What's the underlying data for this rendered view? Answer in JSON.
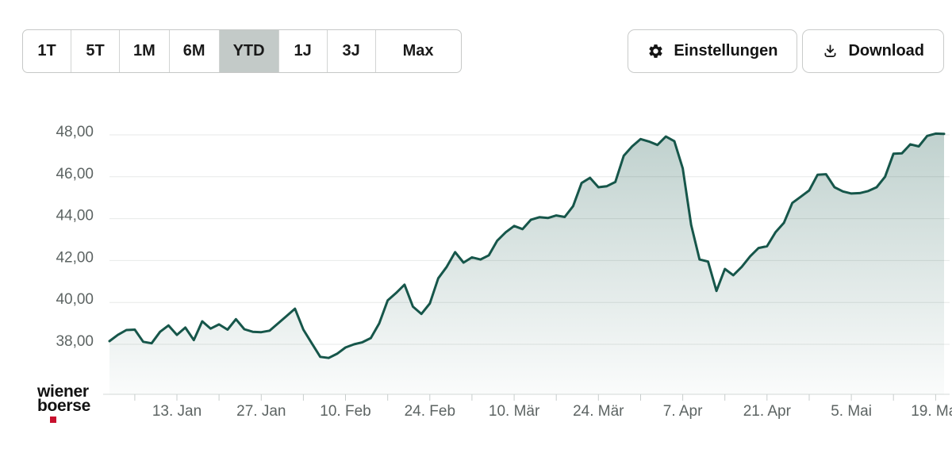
{
  "toolbar": {
    "ranges": [
      {
        "label": "1T",
        "selected": false
      },
      {
        "label": "5T",
        "selected": false
      },
      {
        "label": "1M",
        "selected": false
      },
      {
        "label": "6M",
        "selected": false
      },
      {
        "label": "YTD",
        "selected": true
      },
      {
        "label": "1J",
        "selected": false
      },
      {
        "label": "3J",
        "selected": false
      },
      {
        "label": "Max",
        "selected": false
      }
    ],
    "selected_range": "YTD",
    "settings_label": "Einstellungen",
    "download_label": "Download"
  },
  "logo": {
    "line1": "wiener",
    "line2": "boerse"
  },
  "colors": {
    "line": "#16564a",
    "area_top": "rgba(22,86,74,0.27)",
    "area_bottom": "rgba(22,86,74,0.02)",
    "selected_range_bg": "#c3cac8",
    "grid": "#e7e9e8",
    "axis_text": "#5d6463",
    "axis_line": "#d3d8d7",
    "tick": "#c7cdcc",
    "logo_red": "#c8102e"
  },
  "chart_data": {
    "type": "area",
    "title": "",
    "xlabel": "",
    "ylabel": "",
    "legend": false,
    "grid": "horizontal",
    "ylim": [
      35.4,
      48.8
    ],
    "y_ticks": [
      {
        "label": "48,00",
        "value": 48
      },
      {
        "label": "46,00",
        "value": 46
      },
      {
        "label": "44,00",
        "value": 44
      },
      {
        "label": "42,00",
        "value": 42
      },
      {
        "label": "40,00",
        "value": 40
      },
      {
        "label": "38,00",
        "value": 38
      }
    ],
    "x_ticks": [
      {
        "label": "13. Jan",
        "index": 8
      },
      {
        "label": "27. Jan",
        "index": 18
      },
      {
        "label": "10. Feb",
        "index": 28
      },
      {
        "label": "24. Feb",
        "index": 38
      },
      {
        "label": "10. Mär",
        "index": 48
      },
      {
        "label": "24. Mär",
        "index": 58
      },
      {
        "label": "7. Apr",
        "index": 68
      },
      {
        "label": "21. Apr",
        "index": 78
      },
      {
        "label": "5. Mai",
        "index": 88
      },
      {
        "label": "19. Mai",
        "index": 98
      }
    ],
    "minor_tick_indices": [
      3,
      8,
      13,
      18,
      23,
      28,
      33,
      38,
      43,
      48,
      53,
      58,
      63,
      68,
      73,
      78,
      83,
      88,
      93,
      98
    ],
    "values": [
      38.15,
      38.45,
      38.68,
      38.7,
      38.12,
      38.05,
      38.6,
      38.9,
      38.45,
      38.8,
      38.2,
      39.1,
      38.75,
      38.95,
      38.7,
      39.2,
      38.72,
      38.6,
      38.58,
      38.65,
      39.0,
      39.35,
      39.7,
      38.7,
      38.05,
      37.4,
      37.35,
      37.55,
      37.85,
      38.0,
      38.1,
      38.3,
      39.0,
      40.1,
      40.45,
      40.85,
      39.8,
      39.45,
      39.95,
      41.15,
      41.7,
      42.4,
      41.9,
      42.15,
      42.05,
      42.25,
      42.95,
      43.35,
      43.65,
      43.5,
      43.95,
      44.07,
      44.03,
      44.15,
      44.08,
      44.6,
      45.7,
      45.95,
      45.5,
      45.55,
      45.75,
      47.0,
      47.45,
      47.8,
      47.68,
      47.52,
      47.92,
      47.7,
      46.4,
      43.7,
      42.05,
      41.95,
      40.55,
      41.6,
      41.3,
      41.7,
      42.2,
      42.6,
      42.68,
      43.35,
      43.8,
      44.75,
      45.05,
      45.35,
      46.1,
      46.12,
      45.5,
      45.3,
      45.2,
      45.22,
      45.32,
      45.5,
      46.0,
      47.1,
      47.12,
      47.55,
      47.45,
      47.95,
      48.06,
      48.05
    ]
  }
}
